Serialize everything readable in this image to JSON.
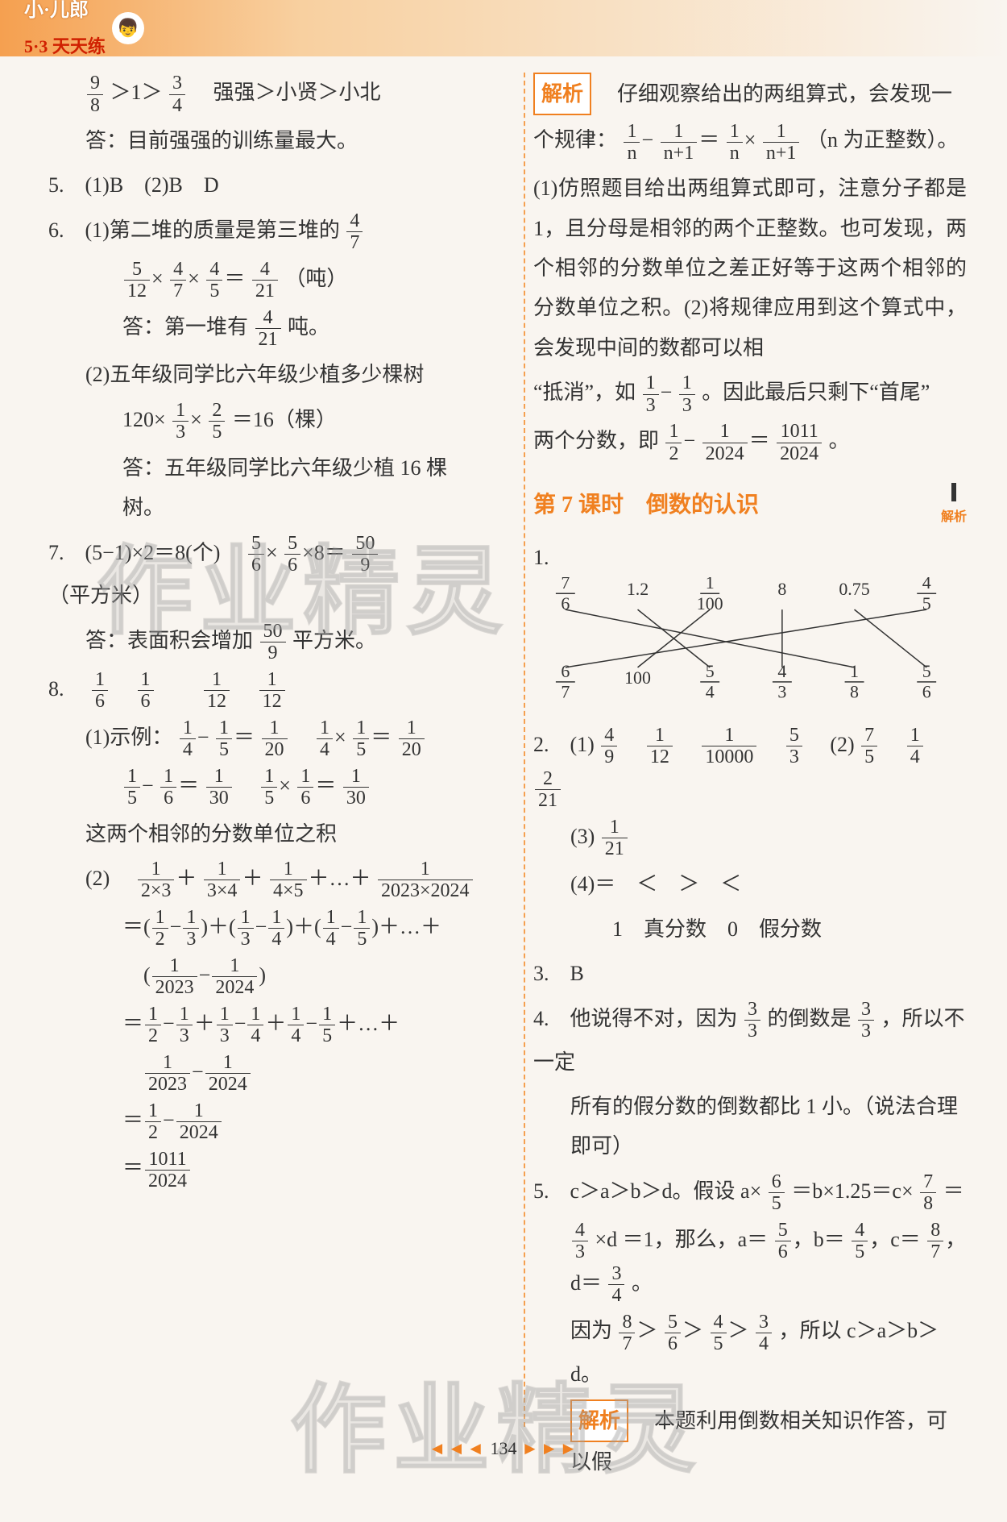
{
  "header": {
    "brand_main": "小·儿郎",
    "brand_sub": "5·3 天天练",
    "cartoon": "👦"
  },
  "left": {
    "l1_a": "9",
    "l1_b": "8",
    "l1_c": "3",
    "l1_d": "4",
    "l1_text": "　强强＞小贤＞小北",
    "l2": "答：目前强强的训练量最大。",
    "q5": "5.　(1)B　(2)B　D",
    "q6_1a": "6.　(1)第二堆的质量是第三堆的",
    "q6_1_fn": "4",
    "q6_1_fd": "7",
    "q6_calc_parts": [
      "5",
      "12",
      "4",
      "7",
      "4",
      "5",
      "4",
      "21"
    ],
    "q6_calc_tail": "（吨）",
    "q6_ans_a": "答：第一堆有",
    "q6_ans_fn": "4",
    "q6_ans_fd": "21",
    "q6_ans_b": "吨。",
    "q6_2a": "(2)五年级同学比六年级少植多少棵树",
    "q6_2calc_pre": "120×",
    "q6_2f1n": "1",
    "q6_2f1d": "3",
    "q6_2f2n": "2",
    "q6_2f2d": "5",
    "q6_2calc_post": "＝16（棵）",
    "q6_2ans": "答：五年级同学比六年级少植 16 棵树。",
    "q7a": "7.　(5−1)×2＝8(个)　",
    "q7_f1n": "5",
    "q7_f1d": "6",
    "q7_f2n": "5",
    "q7_f2d": "6",
    "q7_f3n": "50",
    "q7_f3d": "9",
    "q7_tail": "（平方米）",
    "q7ans_a": "答：表面积会增加",
    "q7ans_fn": "50",
    "q7ans_fd": "9",
    "q7ans_b": "平方米。",
    "q8_head": "8.　",
    "q8_f": [
      "1",
      "6",
      "1",
      "6",
      "1",
      "12",
      "1",
      "12"
    ],
    "q8_1a": "(1)示例：",
    "q8_1_seq1": [
      "1",
      "4",
      "1",
      "5",
      "1",
      "20",
      "1",
      "4",
      "1",
      "5",
      "1",
      "20"
    ],
    "q8_1_seq2": [
      "1",
      "5",
      "1",
      "6",
      "1",
      "30",
      "1",
      "5",
      "1",
      "6",
      "1",
      "30"
    ],
    "q8_1_txt": "这两个相邻的分数单位之积",
    "q8_2_line1_pre": "(2)　",
    "q8_2_s": [
      "1",
      "2×3",
      "1",
      "3×4",
      "1",
      "4×5",
      "1",
      "2023×2024"
    ],
    "q8_2_line2_pairs": [
      [
        "1",
        "2",
        "1",
        "3"
      ],
      [
        "1",
        "3",
        "1",
        "4"
      ],
      [
        "1",
        "4",
        "1",
        "5"
      ]
    ],
    "q8_2_line2_tail": "＋…＋",
    "q8_2_line3_pair": [
      "1",
      "2023",
      "1",
      "2024"
    ],
    "q8_2_line4": [
      "1",
      "2",
      "1",
      "3",
      "1",
      "3",
      "1",
      "4",
      "1",
      "4",
      "1",
      "5"
    ],
    "q8_2_line4_tail": "＋…＋",
    "q8_2_line5": [
      "1",
      "2023",
      "1",
      "2024"
    ],
    "q8_2_line6": [
      "1",
      "2",
      "1",
      "2024"
    ],
    "q8_2_line7": [
      "1011",
      "2024"
    ]
  },
  "right": {
    "jiexi_label": "解析",
    "jiexi_p1a": "　仔细观察给出的两组算式，会发现一",
    "jiexi_p2a": "个规律：",
    "jx_f": [
      "1",
      "n",
      "1",
      "n+1",
      "1",
      "n",
      "1",
      "n+1"
    ],
    "jiexi_p2b": "（n 为正整数）。",
    "jiexi_p3": "(1)仿照题目给出两组算式即可，注意分子都是 1，且分母是相邻的两个正整数。也可发现，两个相邻的分数单位之差正好等于这两个相邻的分数单位之积。(2)将规律应用到这个算式中，会发现中间的数都可以相",
    "jiexi_p4a": "“抵消”，如",
    "jx_f2": [
      "1",
      "3",
      "1",
      "3"
    ],
    "jiexi_p4b": "。因此最后只剩下“首尾”",
    "jiexi_p5a": "两个分数，即",
    "jx_f3": [
      "1",
      "2",
      "1",
      "2024",
      "1011",
      "2024"
    ],
    "jiexi_p5b": "。",
    "sec_title": "第 7 课时　倒数的认识",
    "qr_label": "解析",
    "match_top": [
      "7/6",
      "1.2",
      "1/100",
      "8",
      "0.75",
      "4/5"
    ],
    "match_top_frac": [
      [
        "7",
        "6"
      ],
      null,
      [
        "1",
        "100"
      ],
      null,
      null,
      [
        "4",
        "5"
      ]
    ],
    "match_bot": [
      "6/7",
      "100",
      "5/4",
      "4/3",
      "1/8",
      "5/6"
    ],
    "match_bot_frac": [
      [
        "6",
        "7"
      ],
      null,
      [
        "5",
        "4"
      ],
      [
        "4",
        "3"
      ],
      [
        "1",
        "8"
      ],
      [
        "5",
        "6"
      ]
    ],
    "match_edges": [
      [
        0,
        4
      ],
      [
        1,
        2
      ],
      [
        2,
        1
      ],
      [
        3,
        3
      ],
      [
        4,
        5
      ],
      [
        5,
        0
      ]
    ],
    "q2_1_pre": "2.　(1)",
    "q2_1_f": [
      [
        "4",
        "9"
      ],
      [
        "1",
        "12"
      ],
      [
        "1",
        "10000"
      ],
      [
        "5",
        "3"
      ]
    ],
    "q2_1_post": "　(2)",
    "q2_2_f": [
      [
        "7",
        "5"
      ],
      [
        "1",
        "4"
      ],
      [
        "2",
        "21"
      ]
    ],
    "q2_3_pre": "(3)",
    "q2_3_f": [
      "1",
      "21"
    ],
    "q2_4": "(4)＝　＜　＞　＜",
    "q2_5": "　　1　真分数　0　假分数",
    "q3": "3.　B",
    "q4a": "4.　他说得不对，因为",
    "q4_f1": [
      "3",
      "3"
    ],
    "q4_mid": "的倒数是",
    "q4_f2": [
      "3",
      "3"
    ],
    "q4b": "，所以不一定",
    "q4c": "所有的假分数的倒数都比 1 小。（说法合理即可）",
    "q5a": "5.　c＞a＞b＞d。假设 a×",
    "q5_f1": [
      "6",
      "5"
    ],
    "q5_mid1": "＝b×1.25＝c×",
    "q5_f2": [
      "7",
      "8"
    ],
    "q5_mid2": "＝",
    "q5b_pre": "",
    "q5_f3": [
      "4",
      "3"
    ],
    "q5b_mid": "×d ＝1，那么，a＝",
    "q5_fa": [
      "5",
      "6"
    ],
    "q5_fb": [
      "4",
      "5"
    ],
    "q5_fc": [
      "8",
      "7"
    ],
    "q5_fd": [
      "3",
      "4"
    ],
    "q5b_tail": "。",
    "q5c_pre": "因为",
    "q5c_f": [
      [
        "8",
        "7"
      ],
      [
        "5",
        "6"
      ],
      [
        "4",
        "5"
      ],
      [
        "3",
        "4"
      ]
    ],
    "q5c_post": "，所以 c＞a＞b＞d。",
    "jiexi2_label": "解析",
    "jiexi2_txt": "　本题利用倒数相关知识作答，可以假"
  },
  "page": {
    "num": "134",
    "arrL": "◄◄◄",
    "arrR": "►►►"
  },
  "watermark": "作业精灵",
  "colors": {
    "accent": "#f08020",
    "text": "#333333",
    "bg": "#f9f5f0"
  }
}
